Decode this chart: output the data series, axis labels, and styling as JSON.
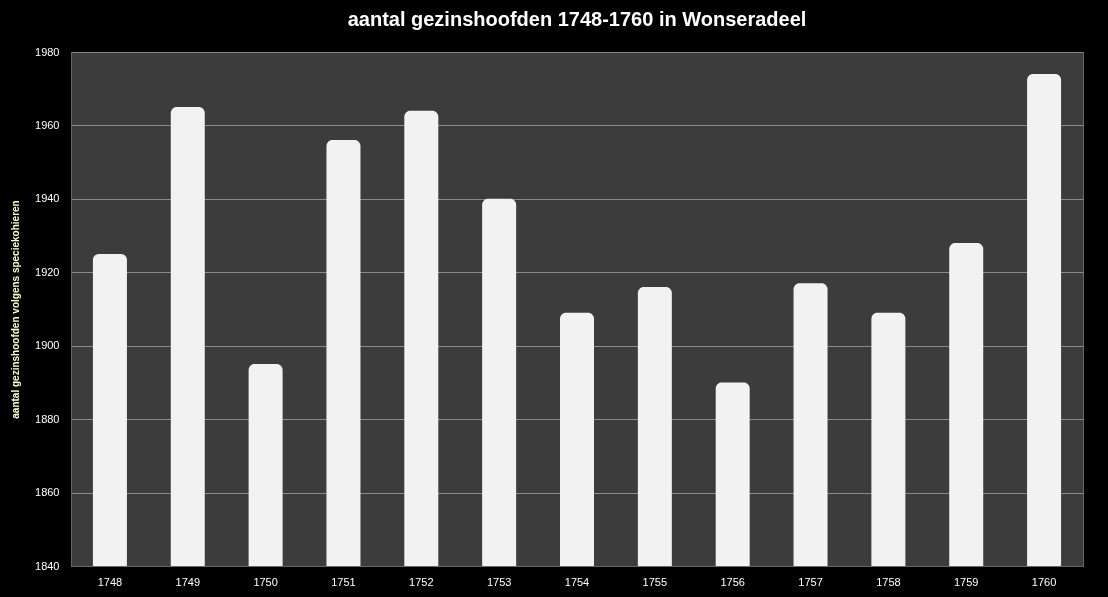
{
  "chart_data": {
    "type": "bar",
    "title": "aantal gezinshoofden 1748-1760 in Wonseradeel",
    "ylabel": "aantal gezinshoofden  volgens speciekohieren",
    "categories": [
      "1748",
      "1749",
      "1750",
      "1751",
      "1752",
      "1753",
      "1754",
      "1755",
      "1756",
      "1757",
      "1758",
      "1759",
      "1760"
    ],
    "values": [
      1925,
      1965,
      1895,
      1956,
      1964,
      1940,
      1909,
      1916,
      1890,
      1917,
      1909,
      1928,
      1974
    ],
    "color": "#f2f2f2",
    "ylim": [
      1840,
      1980
    ],
    "yticks": [
      1840,
      1860,
      1880,
      1900,
      1920,
      1940,
      1960,
      1980
    ],
    "grid": "y"
  }
}
